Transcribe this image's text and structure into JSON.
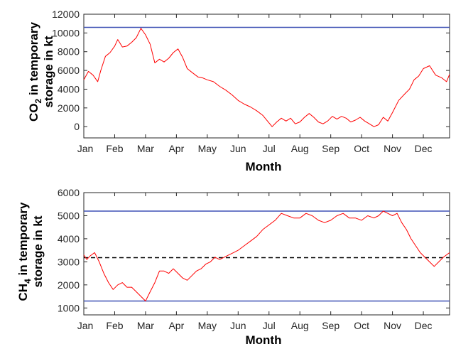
{
  "chart_data": [
    {
      "type": "line",
      "xlabel": "Month",
      "ylabel_main": "CO",
      "ylabel_sub": "2",
      "ylabel_rest": " in temporary",
      "ylabel_line2": "storage in kt",
      "categories": [
        "Jan",
        "Feb",
        "Mar",
        "Apr",
        "May",
        "Jun",
        "Jul",
        "Aug",
        "Sep",
        "Oct",
        "Nov",
        "Dec"
      ],
      "xlim": [
        0,
        11.85
      ],
      "ylim": [
        -1200,
        12000
      ],
      "yticks": [
        0,
        2000,
        4000,
        6000,
        8000,
        10000,
        12000
      ],
      "colors": {
        "series": "#ff0000",
        "limit": "#3f51b5"
      },
      "hlines": [
        {
          "y": 10600,
          "style": "solid",
          "color": "#3f51b5"
        }
      ],
      "series": [
        {
          "x": [
            0,
            0.15,
            0.3,
            0.45,
            0.55,
            0.7,
            0.85,
            1.0,
            1.1,
            1.25,
            1.4,
            1.55,
            1.7,
            1.85,
            2.0,
            2.15,
            2.3,
            2.45,
            2.6,
            2.75,
            2.9,
            3.05,
            3.2,
            3.35,
            3.5,
            3.7,
            3.85,
            4.0,
            4.2,
            4.4,
            4.6,
            4.8,
            5.0,
            5.2,
            5.4,
            5.6,
            5.8,
            6.0,
            6.1,
            6.25,
            6.4,
            6.55,
            6.7,
            6.85,
            7.0,
            7.15,
            7.3,
            7.45,
            7.6,
            7.75,
            7.9,
            8.05,
            8.2,
            8.35,
            8.5,
            8.65,
            8.8,
            8.95,
            9.1,
            9.25,
            9.4,
            9.55,
            9.7,
            9.85,
            10.0,
            10.2,
            10.4,
            10.55,
            10.7,
            10.85,
            11.0,
            11.2,
            11.4,
            11.6,
            11.75,
            11.85
          ],
          "y": [
            5000,
            5900,
            5500,
            4800,
            6000,
            7500,
            7900,
            8600,
            9300,
            8500,
            8600,
            9000,
            9500,
            10500,
            9800,
            8800,
            6800,
            7200,
            6900,
            7300,
            7900,
            8300,
            7400,
            6200,
            5800,
            5300,
            5200,
            5000,
            4800,
            4300,
            3900,
            3400,
            2800,
            2400,
            2100,
            1700,
            1200,
            400,
            0,
            500,
            900,
            600,
            900,
            300,
            500,
            1000,
            1400,
            1000,
            500,
            300,
            600,
            1100,
            800,
            1100,
            900,
            500,
            700,
            1000,
            600,
            300,
            0,
            200,
            1000,
            600,
            1500,
            2800,
            3500,
            4000,
            5000,
            5400,
            6200,
            6500,
            5500,
            5200,
            4800,
            5600
          ]
        }
      ]
    },
    {
      "type": "line",
      "xlabel": "Month",
      "ylabel_main": "CH",
      "ylabel_sub": "4",
      "ylabel_rest": " in temporary",
      "ylabel_line2": "storage in kt",
      "categories": [
        "Jan",
        "Feb",
        "Mar",
        "Apr",
        "May",
        "Jun",
        "Jul",
        "Aug",
        "Sep",
        "Oct",
        "Nov",
        "Dec"
      ],
      "xlim": [
        0,
        11.85
      ],
      "ylim": [
        700,
        6000
      ],
      "yticks": [
        1000,
        2000,
        3000,
        4000,
        5000,
        6000
      ],
      "colors": {
        "series": "#ff0000",
        "limit": "#3f51b5",
        "mean": "#000000"
      },
      "hlines": [
        {
          "y": 5200,
          "style": "solid",
          "color": "#3f51b5"
        },
        {
          "y": 1300,
          "style": "solid",
          "color": "#3f51b5"
        },
        {
          "y": 3180,
          "style": "dashed",
          "color": "#000000"
        }
      ],
      "series": [
        {
          "x": [
            0,
            0.1,
            0.2,
            0.35,
            0.5,
            0.65,
            0.8,
            0.95,
            1.1,
            1.25,
            1.4,
            1.55,
            1.7,
            1.85,
            2.0,
            2.15,
            2.3,
            2.45,
            2.6,
            2.75,
            2.9,
            3.05,
            3.2,
            3.35,
            3.5,
            3.65,
            3.8,
            3.95,
            4.1,
            4.25,
            4.4,
            4.55,
            4.7,
            4.85,
            5.0,
            5.2,
            5.4,
            5.6,
            5.8,
            6.0,
            6.2,
            6.4,
            6.6,
            6.8,
            7.0,
            7.2,
            7.4,
            7.6,
            7.8,
            8.0,
            8.2,
            8.4,
            8.6,
            8.8,
            9.0,
            9.2,
            9.4,
            9.55,
            9.7,
            9.85,
            10.0,
            10.15,
            10.3,
            10.45,
            10.6,
            10.75,
            10.9,
            11.05,
            11.2,
            11.35,
            11.5,
            11.65,
            11.85
          ],
          "y": [
            3300,
            3100,
            3250,
            3400,
            3000,
            2500,
            2100,
            1800,
            2000,
            2100,
            1900,
            1900,
            1700,
            1500,
            1300,
            1700,
            2100,
            2600,
            2600,
            2500,
            2700,
            2500,
            2300,
            2200,
            2400,
            2600,
            2700,
            2900,
            3000,
            3200,
            3100,
            3200,
            3300,
            3400,
            3500,
            3700,
            3900,
            4100,
            4400,
            4600,
            4800,
            5100,
            5000,
            4900,
            4900,
            5100,
            5000,
            4800,
            4700,
            4800,
            5000,
            5100,
            4900,
            4900,
            4800,
            5000,
            4900,
            5000,
            5200,
            5100,
            5000,
            5100,
            4700,
            4400,
            4000,
            3700,
            3400,
            3200,
            3000,
            2800,
            3000,
            3200,
            3400
          ]
        }
      ]
    }
  ]
}
